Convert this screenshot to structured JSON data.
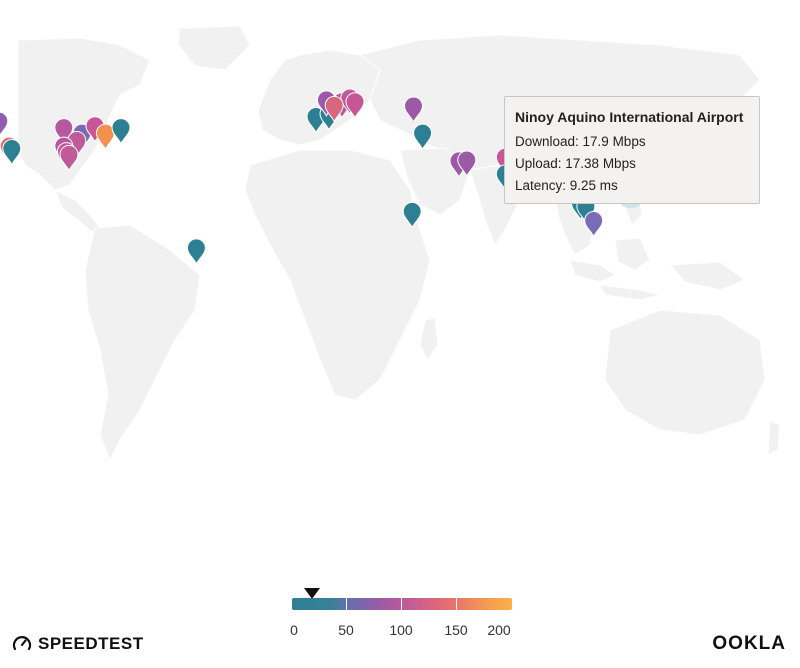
{
  "tooltip": {
    "title": "Ninoy Aquino International Airport",
    "download": "Download: 17.9 Mbps",
    "upload": "Upload: 17.38 Mbps",
    "latency": "Latency: 9.25 ms"
  },
  "legend": {
    "ticks": [
      "0",
      "50",
      "100",
      "150",
      "200"
    ],
    "min": 0,
    "max": 200,
    "marker_value": 17.9,
    "colors": [
      "#2d7f94",
      "#6f6bb0",
      "#c05a99",
      "#ea7867",
      "#fbb14a"
    ]
  },
  "branding": {
    "left": "SPEEDTEST",
    "right": "OOKLA"
  },
  "markers": [
    {
      "lon": -122,
      "lat": 47.5,
      "color": "#8e5fb0"
    },
    {
      "lon": -118,
      "lat": 34,
      "color": "#e56a72"
    },
    {
      "lon": -117,
      "lat": 32.7,
      "color": "#2d7f94"
    },
    {
      "lon": -97,
      "lat": 44,
      "color": "#b7589f"
    },
    {
      "lon": -90,
      "lat": 41,
      "color": "#7a6bb8"
    },
    {
      "lon": -85,
      "lat": 45,
      "color": "#c85596"
    },
    {
      "lon": -81,
      "lat": 41,
      "color": "#f58f4e"
    },
    {
      "lon": -75,
      "lat": 44,
      "color": "#2d7f94"
    },
    {
      "lon": -92,
      "lat": 37,
      "color": "#c05a99"
    },
    {
      "lon": -97,
      "lat": 34,
      "color": "#b7589f"
    },
    {
      "lon": -96,
      "lat": 31,
      "color": "#c85596"
    },
    {
      "lon": -95,
      "lat": 29.5,
      "color": "#c05a99"
    },
    {
      "lon": -46,
      "lat": -21,
      "color": "#2d7f94"
    },
    {
      "lon": 0,
      "lat": 50,
      "color": "#2d7f94"
    },
    {
      "lon": 5,
      "lat": 51.5,
      "color": "#2d7f94"
    },
    {
      "lon": 4,
      "lat": 59,
      "color": "#9c5aa6"
    },
    {
      "lon": 10,
      "lat": 58,
      "color": "#b7589f"
    },
    {
      "lon": 13,
      "lat": 60,
      "color": "#c05a99"
    },
    {
      "lon": 7,
      "lat": 56,
      "color": "#d9657e"
    },
    {
      "lon": 15,
      "lat": 58,
      "color": "#c85596"
    },
    {
      "lon": 37.5,
      "lat": 55.7,
      "color": "#9c5aa6"
    },
    {
      "lon": 41,
      "lat": 41,
      "color": "#2d7f94"
    },
    {
      "lon": 55,
      "lat": 26,
      "color": "#9c5aa6"
    },
    {
      "lon": 58,
      "lat": 26.5,
      "color": "#9c5aa6"
    },
    {
      "lon": 37,
      "lat": -1.3,
      "color": "#2d7f94"
    },
    {
      "lon": 72.8,
      "lat": 28,
      "color": "#c85596"
    },
    {
      "lon": 72.8,
      "lat": 19,
      "color": "#2d7f94"
    },
    {
      "lon": 101,
      "lat": 13.7,
      "color": "#7a6bb8"
    },
    {
      "lon": 106,
      "lat": 11.5,
      "color": "#2d7f94"
    },
    {
      "lon": 101.7,
      "lat": 3.1,
      "color": "#2d7f94"
    },
    {
      "lon": 103.8,
      "lat": 1.4,
      "color": "#2d7f94"
    },
    {
      "lon": 106.8,
      "lat": -6.2,
      "color": "#7a6bb8"
    },
    {
      "lon": 121,
      "lat": 14.5,
      "color": "#2d7f94",
      "selected": true
    }
  ]
}
